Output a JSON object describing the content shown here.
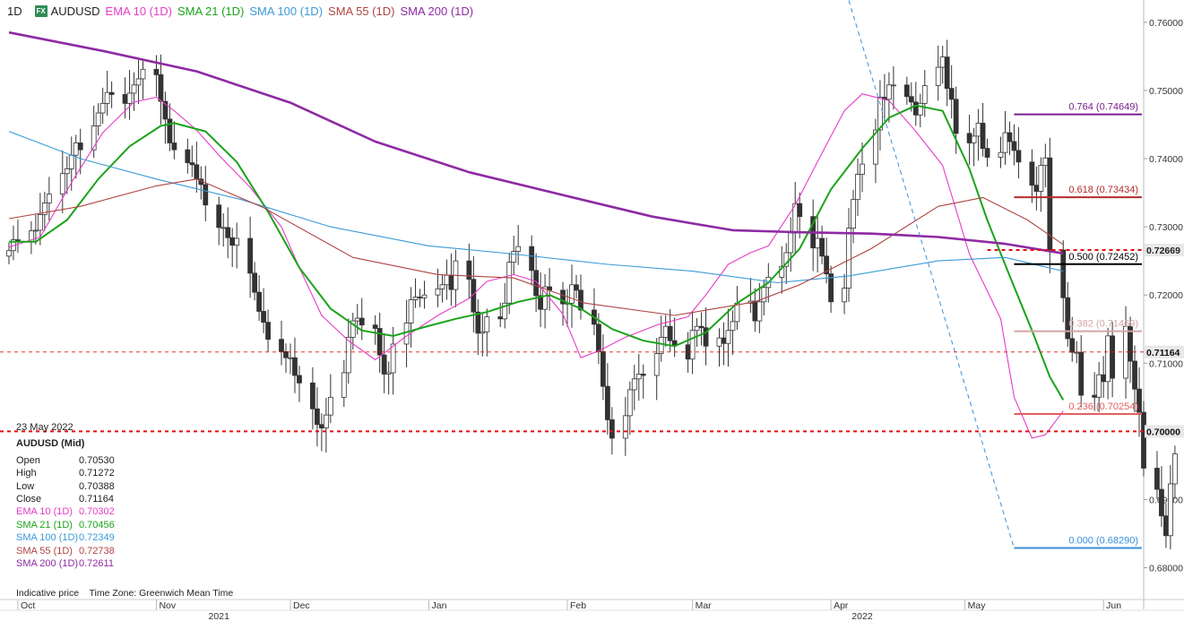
{
  "header": {
    "timeframe": "1D",
    "badge": "FX",
    "symbol": "AUDUSD",
    "indicators": [
      {
        "label": "EMA 10 (1D)",
        "color": "#e63cc7"
      },
      {
        "label": "SMA 21 (1D)",
        "color": "#1aa31a"
      },
      {
        "label": "SMA 100 (1D)",
        "color": "#3a9ad9"
      },
      {
        "label": "SMA 55 (1D)",
        "color": "#b04444"
      },
      {
        "label": "SMA 200 (1D)",
        "color": "#8e2aa3"
      }
    ]
  },
  "info_panel": {
    "date": "23 May 2022",
    "symbol_line": "AUDUSD (Mid)",
    "rows": [
      {
        "label": "Open",
        "value": "0.70530",
        "color": "#222222"
      },
      {
        "label": "High",
        "value": "0.71272",
        "color": "#222222"
      },
      {
        "label": "Low",
        "value": "0.70388",
        "color": "#222222"
      },
      {
        "label": "Close",
        "value": "0.71164",
        "color": "#222222"
      },
      {
        "label": "EMA 10 (1D)",
        "value": "0.70302",
        "color": "#e63cc7"
      },
      {
        "label": "SMA 21 (1D)",
        "value": "0.70456",
        "color": "#1aa31a"
      },
      {
        "label": "SMA 100 (1D)",
        "value": "0.72349",
        "color": "#3a9ad9"
      },
      {
        "label": "SMA 55 (1D)",
        "value": "0.72738",
        "color": "#b04444"
      },
      {
        "label": "SMA 200 (1D)",
        "value": "0.72611",
        "color": "#8e2aa3"
      }
    ]
  },
  "footer_note": "Indicative price    Time Zone: Greenwich Mean Time",
  "chart_data": {
    "type": "candlestick",
    "ylim": [
      0.676,
      0.763
    ],
    "y_ticks": [
      {
        "value": 0.76,
        "label": "0.76000"
      },
      {
        "value": 0.75,
        "label": "0.75000"
      },
      {
        "value": 0.74,
        "label": "0.74000"
      },
      {
        "value": 0.73,
        "label": "0.73000"
      },
      {
        "value": 0.72,
        "label": "0.72000"
      },
      {
        "value": 0.71,
        "label": "0.71000"
      },
      {
        "value": 0.7,
        "label": "0.70000"
      },
      {
        "value": 0.69,
        "label": "0.69000"
      },
      {
        "value": 0.68,
        "label": "0.68000"
      }
    ],
    "x_range": [
      "2021-09-27",
      "2022-06-10"
    ],
    "x_ticks": [
      {
        "date": "2021-10-01",
        "label": "Oct"
      },
      {
        "date": "2021-11-01",
        "label": "Nov"
      },
      {
        "date": "2021-12-01",
        "label": "Dec"
      },
      {
        "date": "2022-01-01",
        "label": "Jan"
      },
      {
        "date": "2022-02-01",
        "label": "Feb"
      },
      {
        "date": "2022-03-01",
        "label": "Mar"
      },
      {
        "date": "2022-04-01",
        "label": "Apr"
      },
      {
        "date": "2022-05-01",
        "label": "May"
      },
      {
        "date": "2022-06-01",
        "label": "Jun"
      }
    ],
    "year_labels": [
      {
        "date": "2021-11-15",
        "label": "2021"
      },
      {
        "date": "2022-04-08",
        "label": "2022"
      }
    ],
    "candles_start": "2021-09-29",
    "closes": [
      0.7265,
      0.7281,
      0.7278,
      0.7294,
      0.7295,
      0.7318,
      0.7335,
      0.7348,
      0.7378,
      0.7385,
      0.7405,
      0.7423,
      0.7413,
      0.7448,
      0.7467,
      0.7481,
      0.7497,
      0.7494,
      0.7481,
      0.7496,
      0.7508,
      0.7517,
      0.7531,
      0.7523,
      0.7484,
      0.7458,
      0.7423,
      0.7413,
      0.7394,
      0.7391,
      0.737,
      0.7362,
      0.7332,
      0.7299,
      0.7299,
      0.7284,
      0.7273,
      0.7283,
      0.7232,
      0.7204,
      0.7176,
      0.716,
      0.7135,
      0.7117,
      0.7108,
      0.7108,
      0.7082,
      0.7071,
      0.7033,
      0.701,
      0.7005,
      0.7024,
      0.705,
      0.7086,
      0.7138,
      0.7162,
      0.7166,
      0.7156,
      0.7151,
      0.7112,
      0.7084,
      0.7086,
      0.7128,
      0.7159,
      0.7193,
      0.7197,
      0.7196,
      0.72,
      0.7209,
      0.7215,
      0.7229,
      0.7208,
      0.725,
      0.7223,
      0.7175,
      0.7144,
      0.7146,
      0.7168,
      0.7165,
      0.7188,
      0.7248,
      0.7264,
      0.7271,
      0.7236,
      0.7199,
      0.7179,
      0.7212,
      0.7207,
      0.7187,
      0.7188,
      0.7215,
      0.7207,
      0.7178,
      0.7157,
      0.7117,
      0.7066,
      0.7017,
      0.699,
      0.7023,
      0.7061,
      0.7077,
      0.7084,
      0.7082,
      0.7114,
      0.7138,
      0.7154,
      0.7133,
      0.7127,
      0.7106,
      0.7148,
      0.7154,
      0.7152,
      0.7125,
      0.7137,
      0.7129,
      0.7148,
      0.7161,
      0.7188,
      0.7191,
      0.7162,
      0.719,
      0.7211,
      0.7226,
      0.7242,
      0.7262,
      0.7291,
      0.7334,
      0.7315,
      0.7269,
      0.7283,
      0.7257,
      0.7231,
      0.719,
      0.721,
      0.7298,
      0.734,
      0.7377,
      0.7392,
      0.7442,
      0.749,
      0.7487,
      0.7508,
      0.7508,
      0.7491,
      0.7483,
      0.7464,
      0.7481,
      0.7507,
      0.7534,
      0.7549,
      0.7503,
      0.7487,
      0.7437,
      0.7423,
      0.7433,
      0.7452,
      0.7415,
      0.7402,
      0.7409,
      0.7438,
      0.7425,
      0.7412,
      0.7395,
      0.7361,
      0.7352,
      0.739,
      0.7401,
      0.7266,
      0.7196,
      0.7136,
      0.7116,
      0.7116,
      0.7053,
      0.705,
      0.7083,
      0.7073,
      0.714,
      0.7078,
      0.7154,
      0.7103,
      0.7062,
      0.7028,
      0.6946,
      0.6915,
      0.6876,
      0.6847,
      0.6923,
      0.6967,
      0.7002,
      0.699,
      0.6997,
      0.7053,
      0.7116
    ],
    "series": [
      {
        "name": "EMA 10 (1D)",
        "color": "#e63cc7",
        "points": [
          [
            "2021-09-29",
            0.727
          ],
          [
            "2021-10-06",
            0.7285
          ],
          [
            "2021-10-13",
            0.7365
          ],
          [
            "2021-10-20",
            0.7438
          ],
          [
            "2021-10-27",
            0.7483
          ],
          [
            "2021-11-01",
            0.749
          ],
          [
            "2021-11-05",
            0.747
          ],
          [
            "2021-11-10",
            0.7442
          ],
          [
            "2021-11-15",
            0.7405
          ],
          [
            "2021-11-22",
            0.7358
          ],
          [
            "2021-11-29",
            0.73
          ],
          [
            "2021-12-03",
            0.724
          ],
          [
            "2021-12-08",
            0.717
          ],
          [
            "2021-12-14",
            0.7133
          ],
          [
            "2021-12-20",
            0.7105
          ],
          [
            "2021-12-27",
            0.714
          ],
          [
            "2022-01-03",
            0.717
          ],
          [
            "2022-01-10",
            0.7195
          ],
          [
            "2022-01-14",
            0.722
          ],
          [
            "2022-01-20",
            0.723
          ],
          [
            "2022-01-25",
            0.722
          ],
          [
            "2022-01-31",
            0.7172
          ],
          [
            "2022-02-04",
            0.7108
          ],
          [
            "2022-02-08",
            0.7118
          ],
          [
            "2022-02-14",
            0.7138
          ],
          [
            "2022-02-21",
            0.7156
          ],
          [
            "2022-02-28",
            0.7168
          ],
          [
            "2022-03-04",
            0.72
          ],
          [
            "2022-03-09",
            0.7245
          ],
          [
            "2022-03-14",
            0.7262
          ],
          [
            "2022-03-18",
            0.7272
          ],
          [
            "2022-03-24",
            0.7332
          ],
          [
            "2022-03-30",
            0.7408
          ],
          [
            "2022-04-04",
            0.747
          ],
          [
            "2022-04-08",
            0.7495
          ],
          [
            "2022-04-14",
            0.7485
          ],
          [
            "2022-04-20",
            0.744
          ],
          [
            "2022-04-26",
            0.739
          ],
          [
            "2022-05-02",
            0.726
          ],
          [
            "2022-05-09",
            0.7165
          ],
          [
            "2022-05-12",
            0.705
          ],
          [
            "2022-05-16",
            0.699
          ],
          [
            "2022-05-19",
            0.6995
          ],
          [
            "2022-05-23",
            0.703
          ]
        ]
      },
      {
        "name": "SMA 21 (1D)",
        "color": "#1aa31a",
        "points": [
          [
            "2021-09-29",
            0.7278
          ],
          [
            "2021-10-05",
            0.7278
          ],
          [
            "2021-10-12",
            0.731
          ],
          [
            "2021-10-19",
            0.737
          ],
          [
            "2021-10-26",
            0.7418
          ],
          [
            "2021-11-02",
            0.7448
          ],
          [
            "2021-11-05",
            0.7452
          ],
          [
            "2021-11-12",
            0.744
          ],
          [
            "2021-11-19",
            0.7395
          ],
          [
            "2021-11-26",
            0.7322
          ],
          [
            "2021-12-03",
            0.724
          ],
          [
            "2021-12-10",
            0.718
          ],
          [
            "2021-12-17",
            0.7148
          ],
          [
            "2021-12-24",
            0.714
          ],
          [
            "2021-12-31",
            0.7153
          ],
          [
            "2022-01-07",
            0.7165
          ],
          [
            "2022-01-14",
            0.7175
          ],
          [
            "2022-01-21",
            0.719
          ],
          [
            "2022-01-28",
            0.72
          ],
          [
            "2022-02-04",
            0.718
          ],
          [
            "2022-02-11",
            0.715
          ],
          [
            "2022-02-18",
            0.7133
          ],
          [
            "2022-02-25",
            0.7125
          ],
          [
            "2022-03-04",
            0.7145
          ],
          [
            "2022-03-11",
            0.7188
          ],
          [
            "2022-03-18",
            0.7218
          ],
          [
            "2022-03-25",
            0.7268
          ],
          [
            "2022-04-01",
            0.7355
          ],
          [
            "2022-04-08",
            0.7415
          ],
          [
            "2022-04-14",
            0.746
          ],
          [
            "2022-04-20",
            0.7478
          ],
          [
            "2022-04-26",
            0.747
          ],
          [
            "2022-05-02",
            0.7385
          ],
          [
            "2022-05-06",
            0.731
          ],
          [
            "2022-05-11",
            0.7228
          ],
          [
            "2022-05-16",
            0.7148
          ],
          [
            "2022-05-20",
            0.708
          ],
          [
            "2022-05-23",
            0.7046
          ]
        ]
      },
      {
        "name": "SMA 100 (1D)",
        "color": "#3a9ad9",
        "points": [
          [
            "2021-09-29",
            0.744
          ],
          [
            "2021-10-15",
            0.74
          ],
          [
            "2021-11-01",
            0.737
          ],
          [
            "2021-11-20",
            0.734
          ],
          [
            "2021-12-10",
            0.73
          ],
          [
            "2022-01-01",
            0.7272
          ],
          [
            "2022-01-20",
            0.726
          ],
          [
            "2022-02-10",
            0.7245
          ],
          [
            "2022-03-01",
            0.7235
          ],
          [
            "2022-03-20",
            0.7218
          ],
          [
            "2022-04-05",
            0.7228
          ],
          [
            "2022-04-25",
            0.725
          ],
          [
            "2022-05-10",
            0.7255
          ],
          [
            "2022-05-23",
            0.7235
          ]
        ]
      },
      {
        "name": "SMA 55 (1D)",
        "color": "#b04444",
        "points": [
          [
            "2021-09-29",
            0.7312
          ],
          [
            "2021-10-15",
            0.733
          ],
          [
            "2021-11-01",
            0.736
          ],
          [
            "2021-11-10",
            0.737
          ],
          [
            "2021-11-25",
            0.7328
          ],
          [
            "2021-12-15",
            0.7255
          ],
          [
            "2022-01-03",
            0.723
          ],
          [
            "2022-01-20",
            0.7225
          ],
          [
            "2022-02-05",
            0.7188
          ],
          [
            "2022-02-25",
            0.717
          ],
          [
            "2022-03-15",
            0.719
          ],
          [
            "2022-03-25",
            0.7215
          ],
          [
            "2022-04-10",
            0.7268
          ],
          [
            "2022-04-25",
            0.733
          ],
          [
            "2022-05-05",
            0.7343
          ],
          [
            "2022-05-15",
            0.731
          ],
          [
            "2022-05-23",
            0.7274
          ]
        ]
      },
      {
        "name": "SMA 200 (1D)",
        "color": "#8e2aa3",
        "points": [
          [
            "2021-09-29",
            0.7585
          ],
          [
            "2021-10-20",
            0.7558
          ],
          [
            "2021-11-10",
            0.7528
          ],
          [
            "2021-12-01",
            0.7482
          ],
          [
            "2021-12-20",
            0.7425
          ],
          [
            "2022-01-10",
            0.738
          ],
          [
            "2022-02-01",
            0.7345
          ],
          [
            "2022-02-20",
            0.7315
          ],
          [
            "2022-03-10",
            0.7295
          ],
          [
            "2022-03-25",
            0.7292
          ],
          [
            "2022-04-10",
            0.729
          ],
          [
            "2022-04-25",
            0.7285
          ],
          [
            "2022-05-10",
            0.7275
          ],
          [
            "2022-05-23",
            0.7261
          ]
        ]
      }
    ],
    "fibonacci": [
      {
        "ratio": "0.764",
        "value": 0.74649,
        "label": "0.764 (0.74649)",
        "color": "#7a1d8f",
        "width": 2
      },
      {
        "ratio": "0.618",
        "value": 0.73434,
        "label": "0.618 (0.73434)",
        "color": "#b52b2b",
        "width": 2
      },
      {
        "ratio": "0.500",
        "value": 0.72452,
        "label": "0.500 (0.72452)",
        "color": "#000000",
        "width": 2
      },
      {
        "ratio": "0.382",
        "value": 0.71469,
        "label": "0.382 (0.71469)",
        "color": "#d4a5a5",
        "width": 2
      },
      {
        "ratio": "0.236",
        "value": 0.70254,
        "label": "0.236 (0.70254)",
        "color": "#e06060",
        "width": 2
      },
      {
        "ratio": "0.000",
        "value": 0.6829,
        "label": "0.000 (0.68290)",
        "color": "#3a8fd9",
        "width": 2
      }
    ],
    "fib_start": "2022-05-12",
    "fib_end": "2022-06-10",
    "support_line": {
      "value": 0.7,
      "label": "0.70000",
      "color": "#e01010"
    },
    "resistance_line": {
      "value": 0.7266,
      "label": "0.72669",
      "color": "#e01010",
      "start": "2022-05-06"
    },
    "current_price": {
      "value": 0.71164,
      "label": "0.71164",
      "color": "#e01010"
    },
    "trend_line": {
      "from": [
        "2022-04-05",
        0.7632
      ],
      "to": [
        "2022-05-12",
        0.6829
      ],
      "color": "#3a8fd9"
    }
  }
}
